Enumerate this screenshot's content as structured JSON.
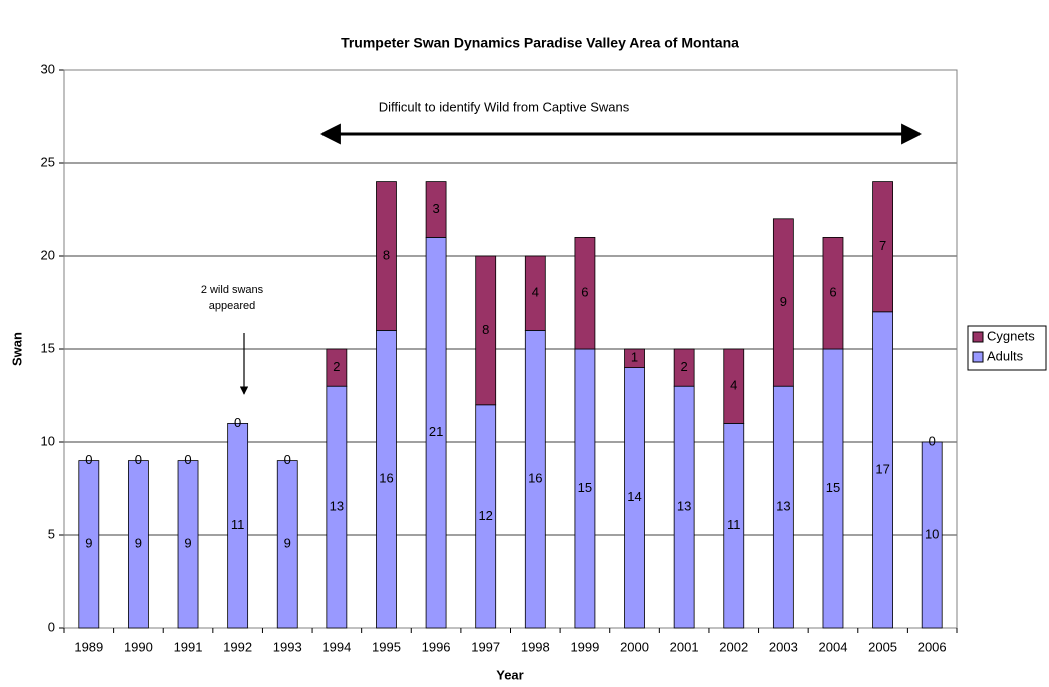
{
  "chart_data": {
    "type": "stacked_bar",
    "title": "Trumpeter Swan Dynamics   Paradise Valley Area of Montana",
    "x_label": "Year",
    "y_label": "Swan",
    "categories": [
      "1989",
      "1990",
      "1991",
      "1992",
      "1993",
      "1994",
      "1995",
      "1996",
      "1997",
      "1998",
      "1999",
      "2000",
      "2001",
      "2002",
      "2003",
      "2004",
      "2005",
      "2006"
    ],
    "series": [
      {
        "name": "Adults",
        "color": "#9999ff",
        "values": [
          9,
          9,
          9,
          11,
          9,
          13,
          16,
          21,
          12,
          16,
          15,
          14,
          13,
          11,
          13,
          15,
          17,
          10
        ]
      },
      {
        "name": "Cygnets",
        "color": "#993366",
        "values": [
          0,
          0,
          0,
          0,
          0,
          2,
          8,
          3,
          8,
          4,
          6,
          1,
          2,
          4,
          9,
          6,
          7,
          0
        ]
      }
    ],
    "ylim": [
      0,
      30
    ],
    "yticks": [
      0,
      5,
      10,
      15,
      20,
      25,
      30
    ],
    "grid": true,
    "legend": "right",
    "annotations": [
      {
        "text": [
          "Difficult to identify Wild from Captive Swans"
        ]
      },
      {
        "text": [
          "2 wild swans",
          "appeared"
        ]
      }
    ]
  }
}
